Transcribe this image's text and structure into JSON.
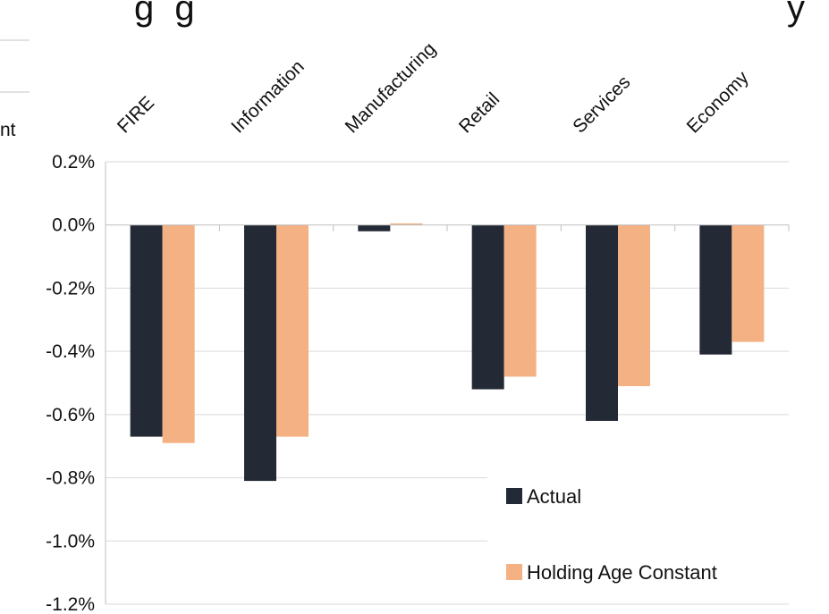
{
  "header": {
    "title_fragment": "g g",
    "title_fragment_right": "y",
    "ylabel_fragment": "nt"
  },
  "chart_data": {
    "type": "bar",
    "title": "",
    "xlabel": "",
    "ylabel": "",
    "categories": [
      "FIRE",
      "Information",
      "Manufacturing",
      "Retail",
      "Services",
      "Economy"
    ],
    "series": [
      {
        "name": "Actual",
        "color": "#232a36",
        "values": [
          -0.67,
          -0.81,
          -0.02,
          -0.52,
          -0.62,
          -0.41
        ]
      },
      {
        "name": "Holding Age Constant",
        "color": "#f4b183",
        "values": [
          -0.69,
          -0.67,
          0.005,
          -0.48,
          -0.51,
          -0.37
        ]
      }
    ],
    "ylim": [
      -1.2,
      0.2
    ],
    "yticks": [
      "0.2%",
      "0.0%",
      "-0.2%",
      "-0.4%",
      "-0.6%",
      "-0.8%",
      "-1.0%",
      "-1.2%"
    ],
    "grid": true,
    "legend": "bottom-right"
  }
}
